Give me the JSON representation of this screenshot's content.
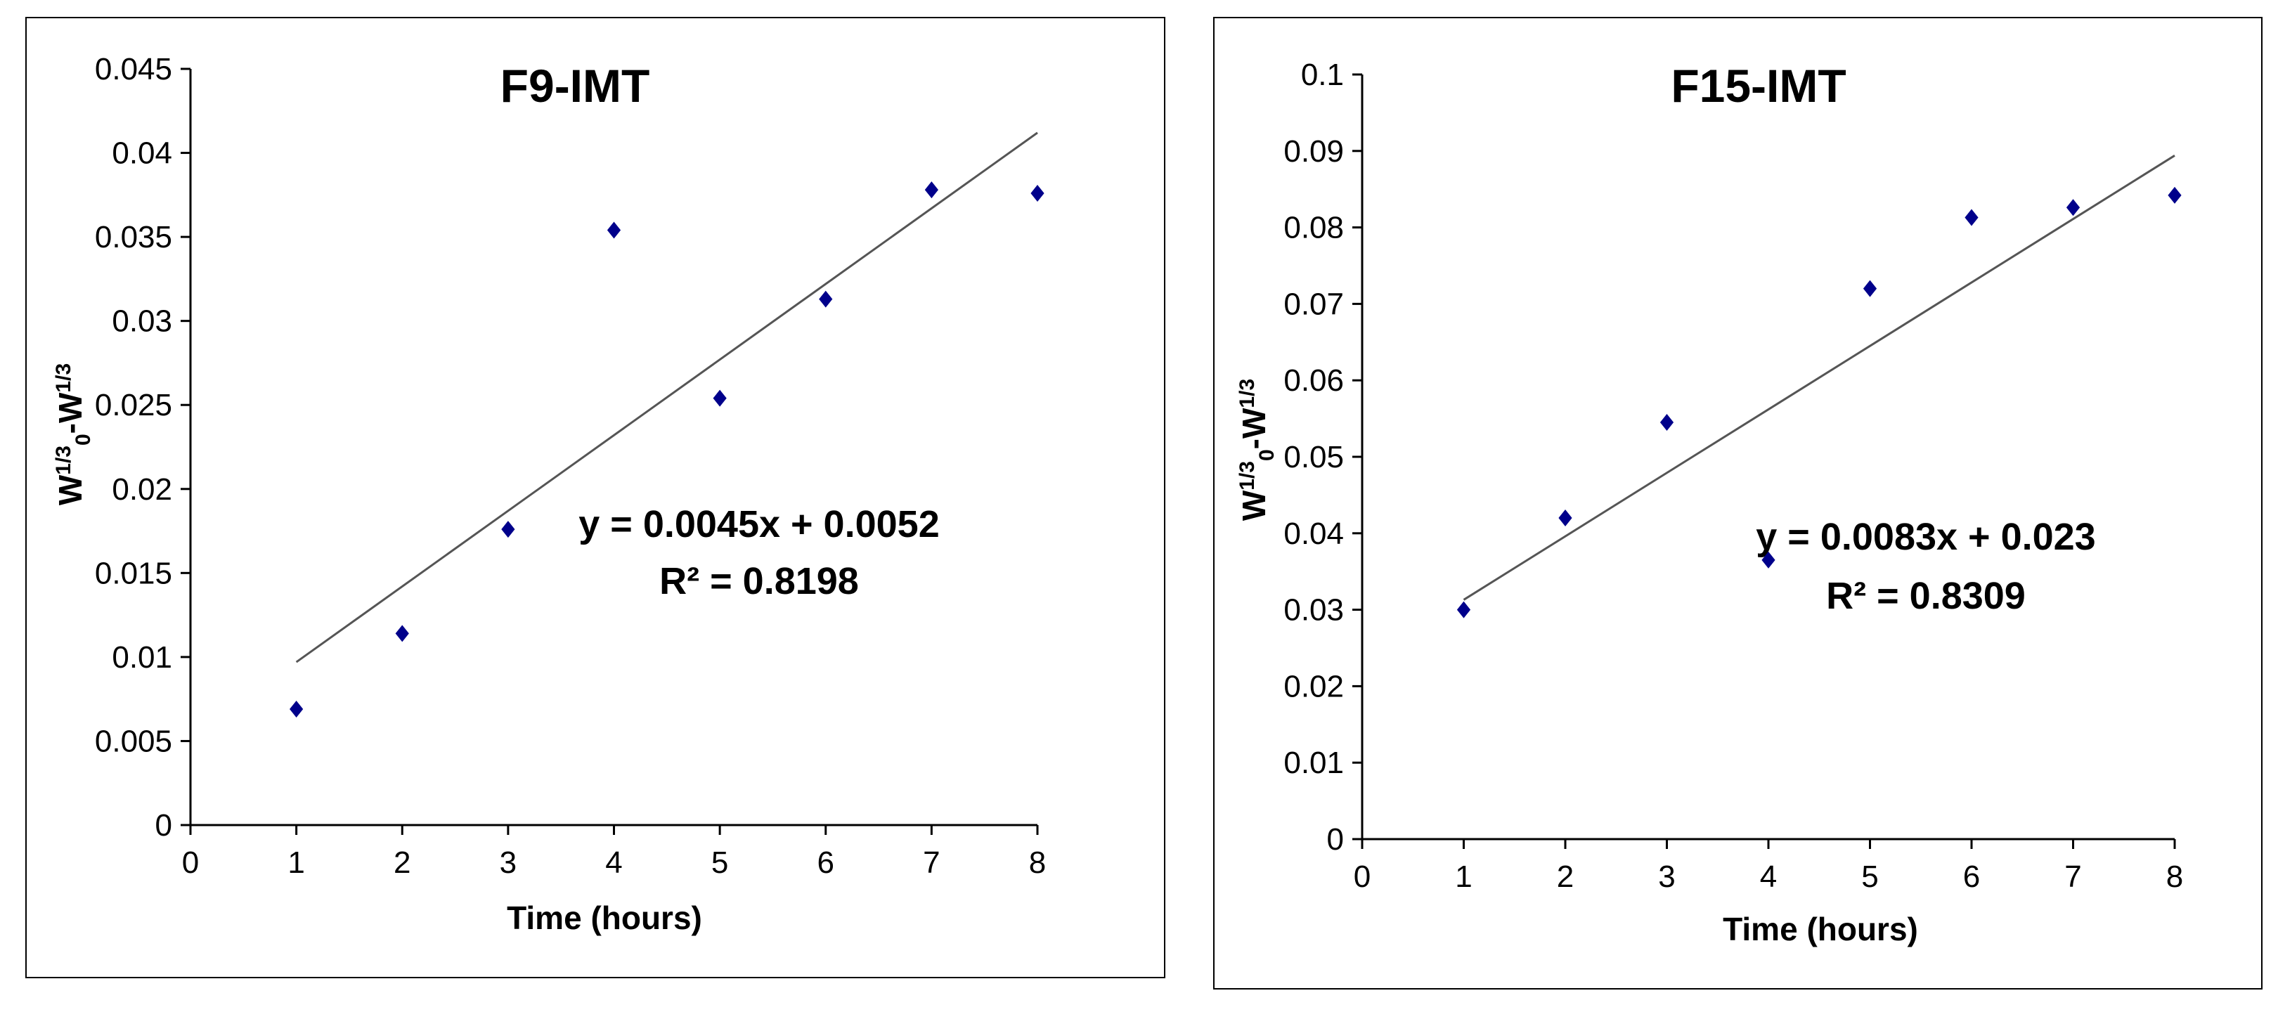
{
  "chart_data": [
    {
      "type": "scatter",
      "title": "F9-IMT",
      "xlabel": "Time (hours)",
      "ylabel": {
        "base": "W",
        "exp1": "1/3",
        "sub": "0",
        "mid": "-W",
        "exp2": "1/3"
      },
      "xlim": [
        0,
        8
      ],
      "ylim": [
        0,
        0.045
      ],
      "x_ticks": [
        "0",
        "1",
        "2",
        "3",
        "4",
        "5",
        "6",
        "7",
        "8"
      ],
      "y_ticks": [
        "0",
        "0.005",
        "0.01",
        "0.015",
        "0.02",
        "0.025",
        "0.03",
        "0.035",
        "0.04",
        "0.045"
      ],
      "series": [
        {
          "name": "data",
          "marker": "diamond",
          "color": "#00008B",
          "x": [
            1,
            2,
            3,
            4,
            5,
            6,
            7,
            8
          ],
          "y": [
            0.0069,
            0.0114,
            0.0176,
            0.0354,
            0.0254,
            0.0313,
            0.0378,
            0.0376
          ]
        }
      ],
      "trendline": {
        "slope": 0.0045,
        "intercept": 0.0052,
        "x_range": [
          1,
          8
        ],
        "color": "#555555"
      },
      "annotations": {
        "equation": "y = 0.0045x + 0.0052",
        "r2": "R² = 0.8198"
      }
    },
    {
      "type": "scatter",
      "title": "F15-IMT",
      "xlabel": "Time (hours)",
      "ylabel": {
        "base": "W",
        "exp1": "1/3",
        "sub": "0",
        "mid": "-W",
        "exp2": "1/3"
      },
      "xlim": [
        0,
        8
      ],
      "ylim": [
        0,
        0.1
      ],
      "x_ticks": [
        "0",
        "1",
        "2",
        "3",
        "4",
        "5",
        "6",
        "7",
        "8"
      ],
      "y_ticks": [
        "0",
        "0.01",
        "0.02",
        "0.03",
        "0.04",
        "0.05",
        "0.06",
        "0.07",
        "0.08",
        "0.09",
        "0.1"
      ],
      "series": [
        {
          "name": "data",
          "marker": "diamond",
          "color": "#00008B",
          "x": [
            1,
            2,
            3,
            4,
            5,
            6,
            7,
            8
          ],
          "y": [
            0.03,
            0.042,
            0.0545,
            0.0365,
            0.072,
            0.0813,
            0.0826,
            0.0842
          ]
        }
      ],
      "trendline": {
        "slope": 0.0083,
        "intercept": 0.023,
        "x_range": [
          1,
          8
        ],
        "color": "#555555"
      },
      "annotations": {
        "equation": "y = 0.0083x + 0.023",
        "r2": "R² = 0.8309"
      }
    }
  ]
}
